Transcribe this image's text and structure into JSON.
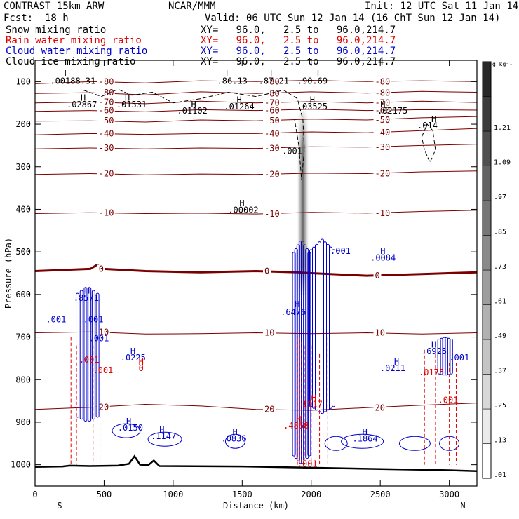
{
  "header": {
    "model": "CONTRAST 15km ARW",
    "org": "NCAR/MMM",
    "init": "Init: 12 UTC Sat 11 Jan 14",
    "fcst_label": "Fcst:",
    "fcst_value": "18 h",
    "valid": "Valid: 06 UTC Sun 12 Jan 14 (16 ChT Sun 12 Jan 14)"
  },
  "fields": [
    {
      "name": "Snow mixing ratio",
      "xy": "XY=   96.0,   2.5 to   96.0,214.7",
      "color": "#000000"
    },
    {
      "name": "Rain water mixing ratio",
      "xy": "XY=   96.0,   2.5 to   96.0,214.7",
      "color": "#e00000"
    },
    {
      "name": "Cloud water mixing ratio",
      "xy": "XY=   96.0,   2.5 to   96.0,214.7",
      "color": "#0000cc"
    },
    {
      "name": "Cloud ice mixing ratio",
      "xy": "XY=   96.0,   2.5 to   96.0,214.7",
      "color": "#000000"
    }
  ],
  "chart_data": {
    "type": "heatmap",
    "xlabel": "Distance (km)",
    "ylabel": "Pressure (hPa)",
    "xlim": [
      0,
      3200
    ],
    "ylim": [
      1050,
      50
    ],
    "x_ticks": [
      0,
      500,
      1000,
      1500,
      2000,
      2500,
      3000
    ],
    "y_ticks": [
      100,
      200,
      300,
      400,
      500,
      600,
      700,
      800,
      900,
      1000
    ],
    "x_end_labels": {
      "left": "S",
      "right": "N"
    },
    "colorbar": {
      "unit": "g kg⁻¹",
      "ticks": [
        ".01",
        ".13",
        ".25",
        ".37",
        ".49",
        ".61",
        ".73",
        ".85",
        ".97",
        "1.09",
        "1.21"
      ]
    },
    "temperature_contours": [
      {
        "label": "-80",
        "color": "#7a0000",
        "points": [
          [
            0,
            105
          ],
          [
            400,
            100
          ],
          [
            800,
            103
          ],
          [
            1200,
            98
          ],
          [
            1600,
            100
          ],
          [
            2000,
            97
          ],
          [
            2400,
            100
          ],
          [
            2800,
            98
          ],
          [
            3200,
            100
          ]
        ]
      },
      {
        "label": "-80",
        "color": "#7a0000",
        "points": [
          [
            0,
            128
          ],
          [
            400,
            126
          ],
          [
            800,
            131
          ],
          [
            1200,
            124
          ],
          [
            1600,
            128
          ],
          [
            2000,
            124
          ],
          [
            2400,
            127
          ],
          [
            2800,
            123
          ],
          [
            3200,
            125
          ]
        ]
      },
      {
        "label": "-70",
        "color": "#7a0000",
        "points": [
          [
            0,
            150
          ],
          [
            400,
            148
          ],
          [
            800,
            152
          ],
          [
            1200,
            146
          ],
          [
            1600,
            150
          ],
          [
            2000,
            147
          ],
          [
            2400,
            150
          ],
          [
            2800,
            146
          ],
          [
            3200,
            149
          ]
        ]
      },
      {
        "label": "-60",
        "color": "#7a0000",
        "points": [
          [
            0,
            170
          ],
          [
            400,
            168
          ],
          [
            800,
            171
          ],
          [
            1200,
            166
          ],
          [
            1600,
            168
          ],
          [
            2000,
            165
          ],
          [
            2400,
            168
          ],
          [
            2800,
            166
          ],
          [
            3200,
            167
          ]
        ]
      },
      {
        "label": "-50",
        "color": "#7a0000",
        "points": [
          [
            0,
            193
          ],
          [
            400,
            192
          ],
          [
            800,
            195
          ],
          [
            1200,
            190
          ],
          [
            1600,
            192
          ],
          [
            2000,
            188
          ],
          [
            2400,
            190
          ],
          [
            2800,
            185
          ],
          [
            3200,
            182
          ]
        ]
      },
      {
        "label": "-40",
        "color": "#7a0000",
        "points": [
          [
            0,
            225
          ],
          [
            400,
            222
          ],
          [
            800,
            224
          ],
          [
            1200,
            222
          ],
          [
            1600,
            222
          ],
          [
            2000,
            218
          ],
          [
            2400,
            220
          ],
          [
            2800,
            215
          ],
          [
            3200,
            210
          ]
        ]
      },
      {
        "label": "-30",
        "color": "#7a0000",
        "points": [
          [
            0,
            258
          ],
          [
            400,
            256
          ],
          [
            800,
            258
          ],
          [
            1200,
            256
          ],
          [
            1600,
            257
          ],
          [
            2000,
            253
          ],
          [
            2400,
            254
          ],
          [
            2800,
            250
          ],
          [
            3200,
            247
          ]
        ]
      },
      {
        "label": "-20",
        "color": "#7a0000",
        "points": [
          [
            0,
            318
          ],
          [
            400,
            316
          ],
          [
            800,
            319
          ],
          [
            1200,
            317
          ],
          [
            1600,
            318
          ],
          [
            2000,
            315
          ],
          [
            2400,
            316
          ],
          [
            2800,
            312
          ],
          [
            3200,
            310
          ]
        ]
      },
      {
        "label": "-10",
        "color": "#7a0000",
        "points": [
          [
            0,
            410
          ],
          [
            400,
            408
          ],
          [
            800,
            410
          ],
          [
            1200,
            409
          ],
          [
            1600,
            411
          ],
          [
            2000,
            407
          ],
          [
            2400,
            409
          ],
          [
            2800,
            405
          ],
          [
            3200,
            402
          ]
        ]
      },
      {
        "label": "0",
        "color": "#7a0000",
        "thick": true,
        "points": [
          [
            0,
            545
          ],
          [
            400,
            540
          ],
          [
            450,
            530
          ],
          [
            500,
            540
          ],
          [
            800,
            545
          ],
          [
            1200,
            548
          ],
          [
            1600,
            545
          ],
          [
            1900,
            548
          ],
          [
            2000,
            550
          ],
          [
            2400,
            556
          ],
          [
            2800,
            552
          ],
          [
            3200,
            548
          ]
        ]
      },
      {
        "label": "10",
        "color": "#7a0000",
        "points": [
          [
            0,
            690
          ],
          [
            400,
            688
          ],
          [
            800,
            693
          ],
          [
            1200,
            692
          ],
          [
            1600,
            690
          ],
          [
            2000,
            692
          ],
          [
            2400,
            690
          ],
          [
            2800,
            693
          ],
          [
            3200,
            690
          ]
        ]
      },
      {
        "label": "20",
        "color": "#7a0000",
        "points": [
          [
            0,
            870
          ],
          [
            400,
            865
          ],
          [
            800,
            858
          ],
          [
            1200,
            862
          ],
          [
            1600,
            870
          ],
          [
            2000,
            872
          ],
          [
            2400,
            866
          ],
          [
            2800,
            860
          ],
          [
            3200,
            855
          ]
        ]
      }
    ],
    "labels": [
      {
        "x": 210,
        "p": 105,
        "text": ".00188.31",
        "color": "#000000"
      },
      {
        "x": 1420,
        "p": 105,
        "text": ".86.13",
        "color": "#000000"
      },
      {
        "x": 1720,
        "p": 105,
        "text": ".87.21",
        "color": "#000000"
      },
      {
        "x": 2000,
        "p": 105,
        "text": ".90.69",
        "color": "#000000"
      },
      {
        "x": 330,
        "p": 160,
        "text": ".02867",
        "color": "#000000"
      },
      {
        "x": 690,
        "p": 160,
        "text": ".01531",
        "color": "#000000"
      },
      {
        "x": 1130,
        "p": 175,
        "text": ".01102",
        "color": "#000000"
      },
      {
        "x": 1470,
        "p": 165,
        "text": ".01264",
        "color": "#000000"
      },
      {
        "x": 2000,
        "p": 165,
        "text": ".03525",
        "color": "#000000"
      },
      {
        "x": 2580,
        "p": 175,
        "text": ".02175",
        "color": "#000000"
      },
      {
        "x": 2870,
        "p": 210,
        "text": ".014",
        "color": "#000000"
      },
      {
        "x": 1890,
        "p": 270,
        "text": ".001",
        "color": "#000000"
      },
      {
        "x": 1500,
        "p": 408,
        "text": ".00002",
        "color": "#000000"
      },
      {
        "x": 1880,
        "p": 648,
        "text": ".6476",
        "color": "#0000cc"
      },
      {
        "x": 2240,
        "p": 505,
        "text": ".001",
        "color": "#0000cc"
      },
      {
        "x": 2530,
        "p": 520,
        "text": ".0084",
        "color": "#0000cc"
      },
      {
        "x": 380,
        "p": 615,
        "text": ".8571",
        "color": "#0000cc"
      },
      {
        "x": 180,
        "p": 665,
        "text": ".001",
        "color": "#0000cc"
      },
      {
        "x": 450,
        "p": 665,
        "text": ".001",
        "color": "#0000cc"
      },
      {
        "x": 490,
        "p": 710,
        "text": ".001",
        "color": "#0000cc"
      },
      {
        "x": 720,
        "p": 755,
        "text": ".0225",
        "color": "#0000cc"
      },
      {
        "x": 2600,
        "p": 780,
        "text": ".0211",
        "color": "#0000cc"
      },
      {
        "x": 2900,
        "p": 740,
        "text": ".6925",
        "color": "#0000cc"
      },
      {
        "x": 3100,
        "p": 755,
        "text": ".001",
        "color": "#0000cc"
      },
      {
        "x": 700,
        "p": 920,
        "text": ".0150",
        "color": "#0000cc"
      },
      {
        "x": 940,
        "p": 940,
        "text": ".1147",
        "color": "#0000cc"
      },
      {
        "x": 1450,
        "p": 945,
        "text": ".0836",
        "color": "#0000cc"
      },
      {
        "x": 2400,
        "p": 945,
        "text": ".1864",
        "color": "#0000cc"
      },
      {
        "x": 1900,
        "p": 915,
        "text": ".4868",
        "color": "#e00000"
      },
      {
        "x": 2000,
        "p": 865,
        "text": ".1917",
        "color": "#e00000"
      },
      {
        "x": 2880,
        "p": 790,
        "text": ".0175",
        "color": "#e00000"
      },
      {
        "x": 3020,
        "p": 855,
        "text": ".001",
        "color": "#e00000"
      },
      {
        "x": 2000,
        "p": 1005,
        "text": ".001",
        "color": "#e00000"
      },
      {
        "x": 420,
        "p": 760,
        "text": ".001",
        "color": "#e00000"
      },
      {
        "x": 520,
        "p": 785,
        "text": ".001",
        "color": "#e00000"
      }
    ],
    "extremes": [
      {
        "x": 210,
        "p": 88,
        "text": "L",
        "color": "#000000"
      },
      {
        "x": 1380,
        "p": 88,
        "text": "L",
        "color": "#000000"
      },
      {
        "x": 1700,
        "p": 88,
        "text": "L",
        "color": "#000000"
      },
      {
        "x": 2040,
        "p": 88,
        "text": "L",
        "color": "#000000"
      },
      {
        "x": 330,
        "p": 145,
        "text": "H",
        "color": "#000000"
      },
      {
        "x": 650,
        "p": 145,
        "text": "H",
        "color": "#000000"
      },
      {
        "x": 1130,
        "p": 160,
        "text": "H",
        "color": "#000000"
      },
      {
        "x": 1460,
        "p": 150,
        "text": "H",
        "color": "#000000"
      },
      {
        "x": 1990,
        "p": 150,
        "text": "H",
        "color": "#000000"
      },
      {
        "x": 2500,
        "p": 160,
        "text": "H",
        "color": "#000000"
      },
      {
        "x": 2870,
        "p": 195,
        "text": "H",
        "color": "#000000"
      },
      {
        "x": 1480,
        "p": 393,
        "text": "H",
        "color": "#000000"
      },
      {
        "x": 1880,
        "p": 630,
        "text": "H",
        "color": "#0000cc"
      },
      {
        "x": 2500,
        "p": 505,
        "text": "H",
        "color": "#0000cc"
      },
      {
        "x": 360,
        "p": 598,
        "text": "H",
        "color": "#0000cc"
      },
      {
        "x": 690,
        "p": 740,
        "text": "H",
        "color": "#0000cc"
      },
      {
        "x": 2600,
        "p": 765,
        "text": "H",
        "color": "#0000cc"
      },
      {
        "x": 2870,
        "p": 725,
        "text": "H",
        "color": "#0000cc"
      },
      {
        "x": 660,
        "p": 905,
        "text": "H",
        "color": "#0000cc"
      },
      {
        "x": 900,
        "p": 925,
        "text": "H",
        "color": "#0000cc"
      },
      {
        "x": 1430,
        "p": 930,
        "text": "H",
        "color": "#0000cc"
      },
      {
        "x": 2370,
        "p": 930,
        "text": "H",
        "color": "#0000cc"
      },
      {
        "x": 1890,
        "p": 900,
        "text": "H",
        "color": "#e00000"
      },
      {
        "x": 2000,
        "p": 850,
        "text": "H",
        "color": "#e00000"
      },
      {
        "x": 750,
        "p": 765,
        "text": "H",
        "color": "#e00000"
      },
      {
        "x": 750,
        "p": 780,
        "text": "0",
        "color": "#e00000"
      }
    ],
    "shading": {
      "x": 1940,
      "p_top": 170,
      "p_bottom": 600,
      "max_value": 0.97
    },
    "terrain": {
      "points": [
        [
          0,
          1005
        ],
        [
          200,
          1004
        ],
        [
          250,
          1002
        ],
        [
          400,
          1003
        ],
        [
          600,
          1002
        ],
        [
          680,
          998
        ],
        [
          720,
          980
        ],
        [
          760,
          1000
        ],
        [
          820,
          1001
        ],
        [
          860,
          990
        ],
        [
          900,
          1003
        ],
        [
          1500,
          1004
        ],
        [
          2000,
          1007
        ],
        [
          2500,
          1010
        ],
        [
          3000,
          1013
        ],
        [
          3200,
          1015
        ]
      ]
    }
  }
}
